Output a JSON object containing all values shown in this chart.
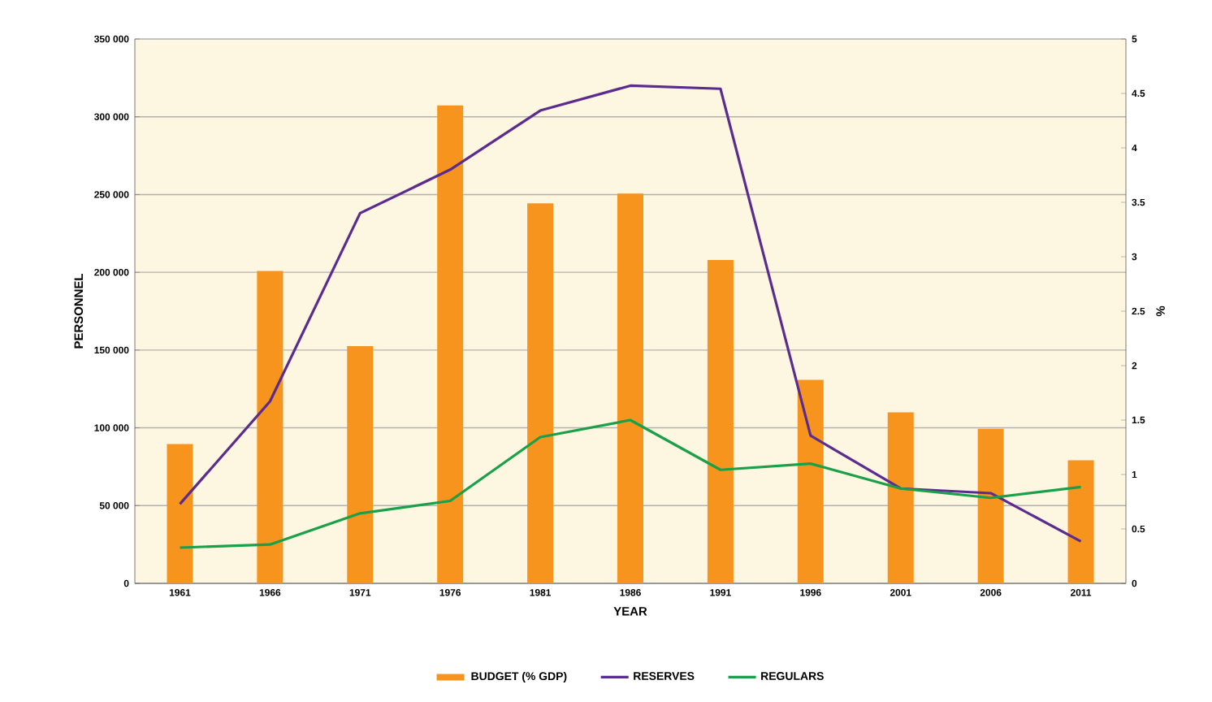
{
  "chart_data": {
    "type": "bar",
    "categories": [
      "1961",
      "1966",
      "1971",
      "1976",
      "1981",
      "1986",
      "1991",
      "1996",
      "2001",
      "2006",
      "2011"
    ],
    "series": [
      {
        "name": "BUDGET (% GDP)",
        "axis": "y2",
        "color": "#f7941d",
        "values": [
          1.28,
          2.87,
          2.18,
          4.39,
          3.49,
          3.58,
          2.97,
          1.87,
          1.57,
          1.42,
          1.13
        ]
      },
      {
        "name": "RESERVES",
        "type": "line",
        "color": "#5b2c8f",
        "values": [
          51000,
          117000,
          238000,
          266000,
          304000,
          320000,
          318000,
          95000,
          61000,
          58000,
          27000
        ]
      },
      {
        "name": "REGULARS",
        "type": "line",
        "color": "#1aa049",
        "values": [
          23000,
          25000,
          45000,
          53000,
          94000,
          105000,
          73000,
          77000,
          61000,
          55000,
          62000
        ]
      }
    ],
    "xlabel": "YEAR",
    "ylabel": "PERSONNEL",
    "y2label": "%",
    "ylim": [
      0,
      350000
    ],
    "yticks": [
      0,
      {
        "value": 50000,
        "label": "50 000"
      },
      {
        "value": 100000,
        "label": "100 000"
      },
      {
        "value": 150000,
        "label": "150 000"
      },
      {
        "value": 200000,
        "label": "200 000"
      },
      {
        "value": 250000,
        "label": "250 000"
      },
      {
        "value": 300000,
        "label": "300 000"
      },
      {
        "value": 350000,
        "label": "350 000"
      }
    ],
    "y2lim": [
      0,
      5
    ],
    "y2ticks": [
      0,
      0.5,
      1,
      1.5,
      2,
      2.5,
      3,
      3.5,
      4,
      4.5,
      5
    ],
    "grid": "y",
    "legend": "bottom",
    "marker": "none",
    "line_style": "solid"
  }
}
